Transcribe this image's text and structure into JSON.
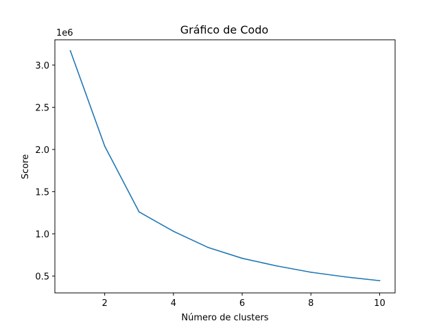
{
  "chart_data": {
    "type": "line",
    "title": "Gráfico de Codo",
    "xlabel": "Número de clusters",
    "ylabel": "Score",
    "y_offset_label": "1e6",
    "xlim": [
      0.55,
      10.45
    ],
    "ylim": [
      0.3,
      3.3
    ],
    "y_scale_factor": 1000000,
    "x_ticks": [
      2,
      4,
      6,
      8,
      10
    ],
    "x_tick_labels": [
      "2",
      "4",
      "6",
      "8",
      "10"
    ],
    "y_ticks": [
      0.5,
      1.0,
      1.5,
      2.0,
      2.5,
      3.0
    ],
    "y_tick_labels": [
      "0.5",
      "1.0",
      "1.5",
      "2.0",
      "2.5",
      "3.0"
    ],
    "grid": false,
    "x": [
      1,
      2,
      3,
      4,
      5,
      6,
      7,
      8,
      9,
      10
    ],
    "series": [
      {
        "color": "#1f77b4",
        "values": [
          3170000,
          2040000,
          1260000,
          1030000,
          840000,
          710000,
          620000,
          545000,
          490000,
          445000
        ]
      }
    ]
  }
}
